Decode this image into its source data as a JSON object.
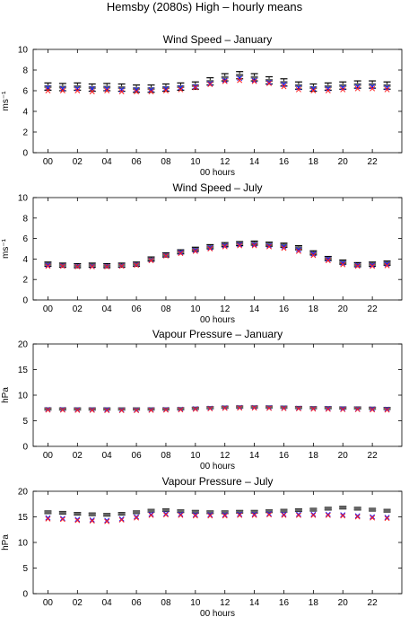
{
  "figure": {
    "suptitle": "Hemsby (2080s) High – hourly means"
  },
  "chart_data": [
    {
      "type": "errorbar",
      "title": "Wind Speed – January",
      "xlabel": "00 hours",
      "ylabel": "ms⁻¹",
      "ylim": [
        0,
        10
      ],
      "yticks": [
        0,
        2,
        4,
        6,
        8,
        10
      ],
      "xticks": [
        "00",
        "02",
        "04",
        "06",
        "08",
        "10",
        "12",
        "14",
        "16",
        "18",
        "20",
        "22"
      ],
      "hours": [
        0,
        1,
        2,
        3,
        4,
        5,
        6,
        7,
        8,
        9,
        10,
        11,
        12,
        13,
        14,
        15,
        16,
        17,
        18,
        19,
        20,
        21,
        22,
        23
      ],
      "series": [
        {
          "marker": "errorbar",
          "color": "#000000",
          "values": [
            6.4,
            6.35,
            6.4,
            6.3,
            6.35,
            6.3,
            6.2,
            6.2,
            6.3,
            6.4,
            6.5,
            6.9,
            7.3,
            7.5,
            7.3,
            7.0,
            6.8,
            6.5,
            6.3,
            6.4,
            6.5,
            6.6,
            6.6,
            6.5
          ],
          "errors": [
            0.35,
            0.35,
            0.35,
            0.35,
            0.35,
            0.35,
            0.35,
            0.35,
            0.35,
            0.35,
            0.35,
            0.35,
            0.35,
            0.35,
            0.35,
            0.35,
            0.35,
            0.35,
            0.35,
            0.35,
            0.35,
            0.35,
            0.35,
            0.35
          ]
        },
        {
          "marker": "x",
          "color": "#1a1aff",
          "values": [
            6.3,
            6.2,
            6.2,
            6.2,
            6.2,
            6.1,
            6.1,
            6.1,
            6.2,
            6.3,
            6.4,
            6.7,
            7.0,
            7.2,
            7.0,
            6.8,
            6.6,
            6.3,
            6.2,
            6.2,
            6.3,
            6.4,
            6.4,
            6.3
          ]
        },
        {
          "marker": "x",
          "color": "#ff2020",
          "values": [
            6.0,
            6.0,
            6.0,
            5.9,
            6.0,
            5.9,
            5.9,
            5.9,
            6.0,
            6.1,
            6.3,
            6.6,
            6.9,
            7.0,
            6.9,
            6.7,
            6.4,
            6.1,
            6.0,
            6.0,
            6.1,
            6.2,
            6.2,
            6.1
          ]
        }
      ]
    },
    {
      "type": "errorbar",
      "title": "Wind Speed – July",
      "xlabel": "00 hours",
      "ylabel": "ms⁻¹",
      "ylim": [
        0,
        10
      ],
      "yticks": [
        0,
        2,
        4,
        6,
        8,
        10
      ],
      "xticks": [
        "00",
        "02",
        "04",
        "06",
        "08",
        "10",
        "12",
        "14",
        "16",
        "18",
        "20",
        "22"
      ],
      "hours": [
        0,
        1,
        2,
        3,
        4,
        5,
        6,
        7,
        8,
        9,
        10,
        11,
        12,
        13,
        14,
        15,
        16,
        17,
        18,
        19,
        20,
        21,
        22,
        23
      ],
      "series": [
        {
          "marker": "errorbar",
          "color": "#000000",
          "values": [
            3.5,
            3.4,
            3.35,
            3.4,
            3.35,
            3.4,
            3.5,
            4.0,
            4.4,
            4.7,
            4.95,
            5.2,
            5.4,
            5.5,
            5.55,
            5.45,
            5.35,
            5.1,
            4.6,
            4.05,
            3.7,
            3.45,
            3.5,
            3.6
          ],
          "errors": [
            0.2,
            0.2,
            0.2,
            0.2,
            0.2,
            0.2,
            0.2,
            0.2,
            0.2,
            0.2,
            0.2,
            0.2,
            0.2,
            0.2,
            0.2,
            0.2,
            0.2,
            0.2,
            0.2,
            0.2,
            0.2,
            0.2,
            0.2,
            0.2
          ]
        },
        {
          "marker": "x",
          "color": "#1a1aff",
          "values": [
            3.4,
            3.35,
            3.3,
            3.3,
            3.3,
            3.35,
            3.45,
            3.9,
            4.35,
            4.65,
            4.85,
            5.1,
            5.3,
            5.4,
            5.4,
            5.3,
            5.2,
            4.9,
            4.5,
            4.0,
            3.6,
            3.4,
            3.4,
            3.5
          ]
        },
        {
          "marker": "x",
          "color": "#ff2020",
          "values": [
            3.3,
            3.3,
            3.25,
            3.25,
            3.25,
            3.3,
            3.4,
            3.85,
            4.3,
            4.55,
            4.75,
            5.0,
            5.2,
            5.3,
            5.3,
            5.2,
            5.05,
            4.75,
            4.35,
            3.85,
            3.45,
            3.3,
            3.3,
            3.35
          ]
        }
      ]
    },
    {
      "type": "errorbar",
      "title": "Vapour Pressure – January",
      "xlabel": "00 hours",
      "ylabel": "hPa",
      "ylim": [
        0,
        20
      ],
      "yticks": [
        0,
        5,
        10,
        15,
        20
      ],
      "xticks": [
        "00",
        "02",
        "04",
        "06",
        "08",
        "10",
        "12",
        "14",
        "16",
        "18",
        "20",
        "22"
      ],
      "hours": [
        0,
        1,
        2,
        3,
        4,
        5,
        6,
        7,
        8,
        9,
        10,
        11,
        12,
        13,
        14,
        15,
        16,
        17,
        18,
        19,
        20,
        21,
        22,
        23
      ],
      "series": [
        {
          "marker": "errorbar",
          "color": "#000000",
          "values": [
            7.3,
            7.3,
            7.3,
            7.3,
            7.3,
            7.3,
            7.3,
            7.3,
            7.3,
            7.35,
            7.45,
            7.55,
            7.65,
            7.7,
            7.7,
            7.7,
            7.65,
            7.6,
            7.55,
            7.55,
            7.5,
            7.5,
            7.45,
            7.4
          ],
          "errors": [
            0.2,
            0.2,
            0.2,
            0.2,
            0.2,
            0.2,
            0.2,
            0.2,
            0.2,
            0.2,
            0.2,
            0.2,
            0.2,
            0.2,
            0.2,
            0.2,
            0.2,
            0.2,
            0.2,
            0.2,
            0.2,
            0.2,
            0.2,
            0.2
          ]
        },
        {
          "marker": "x",
          "color": "#1a1aff",
          "values": [
            7.2,
            7.2,
            7.15,
            7.15,
            7.15,
            7.1,
            7.1,
            7.15,
            7.2,
            7.25,
            7.35,
            7.45,
            7.55,
            7.6,
            7.6,
            7.55,
            7.5,
            7.45,
            7.4,
            7.4,
            7.35,
            7.3,
            7.3,
            7.25
          ]
        },
        {
          "marker": "x",
          "color": "#ff2020",
          "values": [
            7.1,
            7.1,
            7.05,
            7.05,
            7.0,
            7.0,
            7.0,
            7.05,
            7.1,
            7.15,
            7.25,
            7.35,
            7.45,
            7.5,
            7.5,
            7.45,
            7.4,
            7.35,
            7.3,
            7.25,
            7.2,
            7.2,
            7.15,
            7.1
          ]
        }
      ]
    },
    {
      "type": "errorbar",
      "title": "Vapour Pressure – July",
      "xlabel": "00 hours",
      "ylabel": "hPa",
      "ylim": [
        0,
        20
      ],
      "yticks": [
        0,
        5,
        10,
        15,
        20
      ],
      "xticks": [
        "00",
        "02",
        "04",
        "06",
        "08",
        "10",
        "12",
        "14",
        "16",
        "18",
        "20",
        "22"
      ],
      "hours": [
        0,
        1,
        2,
        3,
        4,
        5,
        6,
        7,
        8,
        9,
        10,
        11,
        12,
        13,
        14,
        15,
        16,
        17,
        18,
        19,
        20,
        21,
        22,
        23
      ],
      "series": [
        {
          "marker": "errorbar",
          "color": "#000000",
          "values": [
            15.9,
            15.8,
            15.6,
            15.5,
            15.4,
            15.6,
            15.9,
            16.2,
            16.3,
            16.1,
            16.0,
            15.9,
            15.9,
            16.0,
            16.0,
            16.1,
            16.2,
            16.3,
            16.4,
            16.6,
            16.8,
            16.6,
            16.4,
            16.2
          ],
          "errors": [
            0.25,
            0.25,
            0.25,
            0.25,
            0.25,
            0.25,
            0.25,
            0.25,
            0.25,
            0.25,
            0.25,
            0.25,
            0.25,
            0.25,
            0.25,
            0.25,
            0.25,
            0.25,
            0.25,
            0.25,
            0.25,
            0.25,
            0.25,
            0.25
          ]
        },
        {
          "marker": "x",
          "color": "#1a1aff",
          "values": [
            14.8,
            14.7,
            14.5,
            14.4,
            14.3,
            14.6,
            15.0,
            15.5,
            15.6,
            15.5,
            15.4,
            15.4,
            15.4,
            15.5,
            15.5,
            15.6,
            15.5,
            15.5,
            15.5,
            15.5,
            15.4,
            15.2,
            15.0,
            14.9
          ]
        },
        {
          "marker": "x",
          "color": "#ff2020",
          "values": [
            14.6,
            14.5,
            14.3,
            14.2,
            14.1,
            14.4,
            14.8,
            15.3,
            15.4,
            15.3,
            15.2,
            15.2,
            15.2,
            15.3,
            15.3,
            15.4,
            15.3,
            15.3,
            15.3,
            15.3,
            15.2,
            15.0,
            14.8,
            14.7
          ]
        }
      ]
    }
  ]
}
